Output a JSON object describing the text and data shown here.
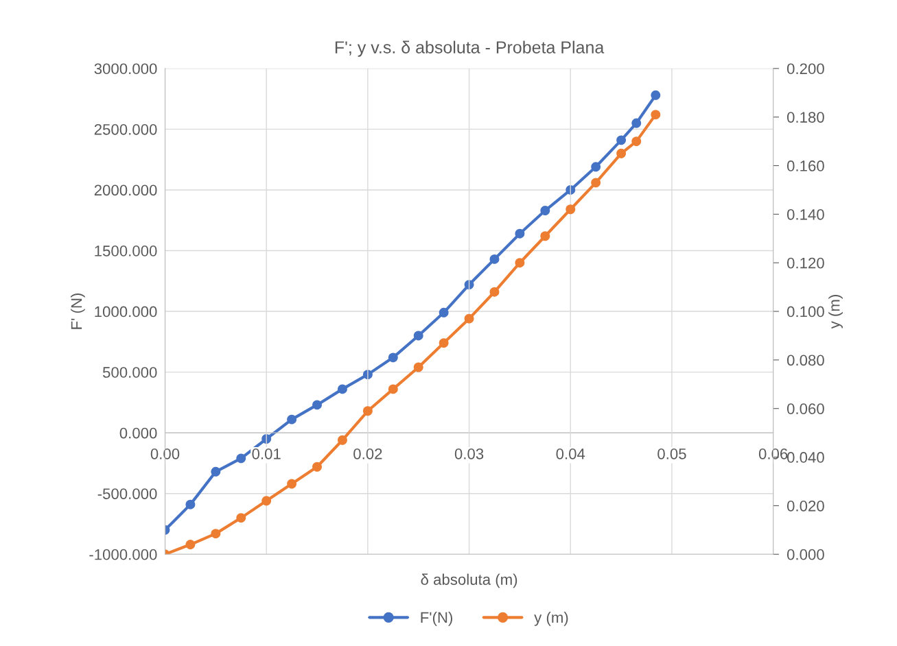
{
  "chart_data": {
    "type": "line",
    "title": "F'; y v.s. δ absoluta - Probeta Plana",
    "xlabel": "δ absoluta (m)",
    "ylabel": "F' (N)",
    "y2label": "y (m)",
    "xlim": [
      0,
      0.06
    ],
    "xticks": [
      {
        "value": 0,
        "label": "0.00"
      },
      {
        "value": 0.01,
        "label": "0.01"
      },
      {
        "value": 0.02,
        "label": "0.02"
      },
      {
        "value": 0.03,
        "label": "0.03"
      },
      {
        "value": 0.04,
        "label": "0.04"
      },
      {
        "value": 0.05,
        "label": "0.05"
      },
      {
        "value": 0.06,
        "label": "0.06"
      }
    ],
    "ylim": [
      -1000,
      3000
    ],
    "yticks": [
      {
        "value": -1000,
        "label": "-1000.000"
      },
      {
        "value": -500,
        "label": "-500.000"
      },
      {
        "value": 0,
        "label": "0.000"
      },
      {
        "value": 500,
        "label": "500.000"
      },
      {
        "value": 1000,
        "label": "1000.000"
      },
      {
        "value": 1500,
        "label": "1500.000"
      },
      {
        "value": 2000,
        "label": "2000.000"
      },
      {
        "value": 2500,
        "label": "2500.000"
      },
      {
        "value": 3000,
        "label": "3000.000"
      }
    ],
    "y2lim": [
      0,
      0.2
    ],
    "y2ticks": [
      {
        "value": 0,
        "label": "0.000"
      },
      {
        "value": 0.02,
        "label": "0.020"
      },
      {
        "value": 0.04,
        "label": "0.040"
      },
      {
        "value": 0.06,
        "label": "0.060"
      },
      {
        "value": 0.08,
        "label": "0.080"
      },
      {
        "value": 0.1,
        "label": "0.100"
      },
      {
        "value": 0.12,
        "label": "0.120"
      },
      {
        "value": 0.14,
        "label": "0.140"
      },
      {
        "value": 0.16,
        "label": "0.160"
      },
      {
        "value": 0.18,
        "label": "0.180"
      },
      {
        "value": 0.2,
        "label": "0.200"
      }
    ],
    "x": [
      0,
      0.0025,
      0.005,
      0.0075,
      0.01,
      0.0125,
      0.015,
      0.0175,
      0.02,
      0.0225,
      0.025,
      0.0275,
      0.03,
      0.0325,
      0.035,
      0.0375,
      0.04,
      0.0425,
      0.045,
      0.0465,
      0.0484
    ],
    "series": [
      {
        "name": "F'(N)",
        "color": "#4472c4",
        "values": [
          -800,
          -590,
          -320,
          -210,
          -50,
          110,
          230,
          360,
          480,
          620,
          800,
          990,
          1220,
          1430,
          1640,
          1830,
          2000,
          2190,
          2410,
          2550,
          2780
        ]
      },
      {
        "name": "y (m)",
        "color": "#ed7d31",
        "axis": "y2",
        "values": [
          0,
          0.004,
          0.0085,
          0.015,
          0.022,
          0.029,
          0.036,
          0.047,
          0.059,
          0.068,
          0.077,
          0.087,
          0.097,
          0.108,
          0.12,
          0.131,
          0.142,
          0.153,
          0.165,
          0.17,
          0.181
        ]
      }
    ],
    "grid": true,
    "legend": "bottom",
    "marker": "circle",
    "line_style": "solid"
  }
}
